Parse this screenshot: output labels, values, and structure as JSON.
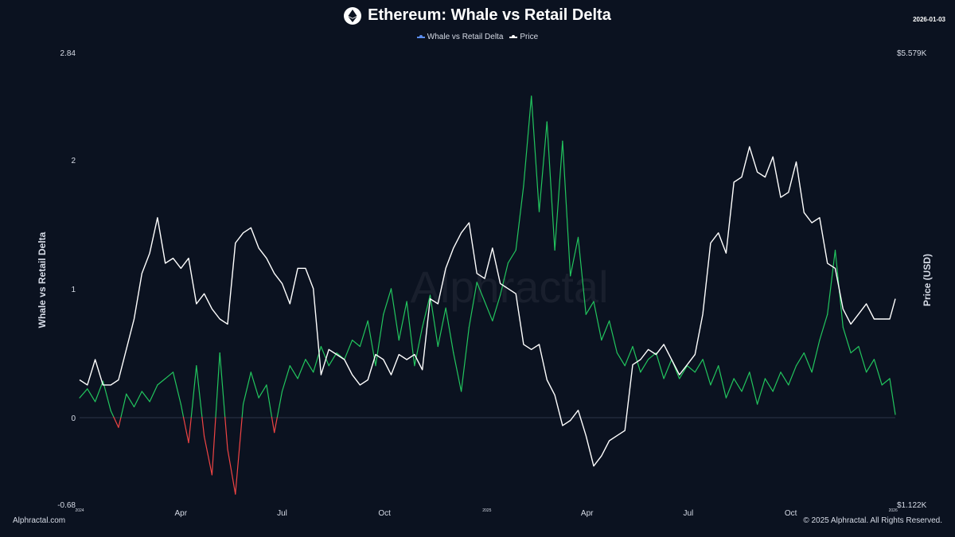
{
  "header": {
    "title": "Ethereum: Whale vs Retail Delta",
    "date": "2026-01-03",
    "logo_icon": "ethereum-icon"
  },
  "legend": [
    {
      "label": "Whale vs Retail Delta",
      "color": "#5b8def"
    },
    {
      "label": "Price",
      "color": "#ffffff"
    }
  ],
  "footer": {
    "left": "Alphractal.com",
    "right": "© 2025 Alphractal. All Rights Reserved."
  },
  "watermark": "Alphractal",
  "colors": {
    "positive": "#22c55e",
    "negative": "#ef4444",
    "price": "#ffffff",
    "background": "#0b1220"
  },
  "chart_data": {
    "type": "line",
    "x_range": [
      "2024-01-01",
      "2026-01-03"
    ],
    "left_axis": {
      "label": "Whale vs Retail Delta",
      "min": -0.68,
      "max": 2.84,
      "ticks": [
        "2.84",
        "2",
        "1",
        "0",
        "-0.68"
      ]
    },
    "right_axis": {
      "label": "Price (USD)",
      "min": 1122,
      "max": 5579,
      "ticks": [
        "$5.579K",
        "$1.122K"
      ]
    },
    "x_ticks": [
      {
        "date": "2024-01-01",
        "label": "2024",
        "small": true
      },
      {
        "date": "2024-04-01",
        "label": "Apr",
        "small": false
      },
      {
        "date": "2024-07-01",
        "label": "Jul",
        "small": false
      },
      {
        "date": "2024-10-01",
        "label": "Oct",
        "small": false
      },
      {
        "date": "2025-01-01",
        "label": "2025",
        "small": true
      },
      {
        "date": "2025-04-01",
        "label": "Apr",
        "small": false
      },
      {
        "date": "2025-07-01",
        "label": "Jul",
        "small": false
      },
      {
        "date": "2025-10-01",
        "label": "Oct",
        "small": false
      },
      {
        "date": "2026-01-01",
        "label": "2026",
        "small": true
      }
    ],
    "series": [
      {
        "name": "Whale vs Retail Delta",
        "axis": "left",
        "points": [
          [
            "2024-01-01",
            0.15
          ],
          [
            "2024-01-08",
            0.22
          ],
          [
            "2024-01-15",
            0.12
          ],
          [
            "2024-01-22",
            0.28
          ],
          [
            "2024-01-29",
            0.05
          ],
          [
            "2024-02-05",
            -0.08
          ],
          [
            "2024-02-12",
            0.18
          ],
          [
            "2024-02-19",
            0.08
          ],
          [
            "2024-02-26",
            0.2
          ],
          [
            "2024-03-04",
            0.12
          ],
          [
            "2024-03-11",
            0.25
          ],
          [
            "2024-03-18",
            0.3
          ],
          [
            "2024-03-25",
            0.35
          ],
          [
            "2024-04-01",
            0.1
          ],
          [
            "2024-04-08",
            -0.2
          ],
          [
            "2024-04-15",
            0.4
          ],
          [
            "2024-04-22",
            -0.15
          ],
          [
            "2024-04-29",
            -0.45
          ],
          [
            "2024-05-06",
            0.5
          ],
          [
            "2024-05-13",
            -0.25
          ],
          [
            "2024-05-20",
            -0.6
          ],
          [
            "2024-05-27",
            0.1
          ],
          [
            "2024-06-03",
            0.35
          ],
          [
            "2024-06-10",
            0.15
          ],
          [
            "2024-06-17",
            0.25
          ],
          [
            "2024-06-24",
            -0.12
          ],
          [
            "2024-07-01",
            0.2
          ],
          [
            "2024-07-08",
            0.4
          ],
          [
            "2024-07-15",
            0.3
          ],
          [
            "2024-07-22",
            0.45
          ],
          [
            "2024-07-29",
            0.35
          ],
          [
            "2024-08-05",
            0.55
          ],
          [
            "2024-08-12",
            0.4
          ],
          [
            "2024-08-19",
            0.5
          ],
          [
            "2024-08-26",
            0.45
          ],
          [
            "2024-09-02",
            0.6
          ],
          [
            "2024-09-09",
            0.55
          ],
          [
            "2024-09-16",
            0.75
          ],
          [
            "2024-09-23",
            0.4
          ],
          [
            "2024-09-30",
            0.8
          ],
          [
            "2024-10-07",
            1.0
          ],
          [
            "2024-10-14",
            0.6
          ],
          [
            "2024-10-21",
            0.9
          ],
          [
            "2024-10-28",
            0.4
          ],
          [
            "2024-11-04",
            0.7
          ],
          [
            "2024-11-11",
            0.95
          ],
          [
            "2024-11-18",
            0.55
          ],
          [
            "2024-11-25",
            0.85
          ],
          [
            "2024-12-02",
            0.5
          ],
          [
            "2024-12-09",
            0.2
          ],
          [
            "2024-12-16",
            0.7
          ],
          [
            "2024-12-23",
            1.05
          ],
          [
            "2024-12-30",
            0.9
          ],
          [
            "2025-01-06",
            0.75
          ],
          [
            "2025-01-13",
            0.95
          ],
          [
            "2025-01-20",
            1.2
          ],
          [
            "2025-01-27",
            1.3
          ],
          [
            "2025-02-03",
            1.8
          ],
          [
            "2025-02-10",
            2.5
          ],
          [
            "2025-02-17",
            1.6
          ],
          [
            "2025-02-24",
            2.3
          ],
          [
            "2025-03-03",
            1.3
          ],
          [
            "2025-03-10",
            2.15
          ],
          [
            "2025-03-17",
            1.1
          ],
          [
            "2025-03-24",
            1.4
          ],
          [
            "2025-03-31",
            0.8
          ],
          [
            "2025-04-07",
            0.9
          ],
          [
            "2025-04-14",
            0.6
          ],
          [
            "2025-04-21",
            0.75
          ],
          [
            "2025-04-28",
            0.5
          ],
          [
            "2025-05-05",
            0.4
          ],
          [
            "2025-05-12",
            0.55
          ],
          [
            "2025-05-19",
            0.35
          ],
          [
            "2025-05-26",
            0.45
          ],
          [
            "2025-06-02",
            0.5
          ],
          [
            "2025-06-09",
            0.3
          ],
          [
            "2025-06-16",
            0.45
          ],
          [
            "2025-06-23",
            0.3
          ],
          [
            "2025-06-30",
            0.4
          ],
          [
            "2025-07-07",
            0.35
          ],
          [
            "2025-07-14",
            0.45
          ],
          [
            "2025-07-21",
            0.25
          ],
          [
            "2025-07-28",
            0.4
          ],
          [
            "2025-08-04",
            0.15
          ],
          [
            "2025-08-11",
            0.3
          ],
          [
            "2025-08-18",
            0.2
          ],
          [
            "2025-08-25",
            0.35
          ],
          [
            "2025-09-01",
            0.1
          ],
          [
            "2025-09-08",
            0.3
          ],
          [
            "2025-09-15",
            0.2
          ],
          [
            "2025-09-22",
            0.35
          ],
          [
            "2025-09-29",
            0.25
          ],
          [
            "2025-10-06",
            0.4
          ],
          [
            "2025-10-13",
            0.5
          ],
          [
            "2025-10-20",
            0.35
          ],
          [
            "2025-10-27",
            0.6
          ],
          [
            "2025-11-03",
            0.8
          ],
          [
            "2025-11-10",
            1.3
          ],
          [
            "2025-11-17",
            0.7
          ],
          [
            "2025-11-24",
            0.5
          ],
          [
            "2025-12-01",
            0.55
          ],
          [
            "2025-12-08",
            0.35
          ],
          [
            "2025-12-15",
            0.45
          ],
          [
            "2025-12-22",
            0.25
          ],
          [
            "2025-12-29",
            0.3
          ],
          [
            "2026-01-03",
            0.02
          ]
        ]
      },
      {
        "name": "Price",
        "axis": "right",
        "points": [
          [
            "2024-01-01",
            2350
          ],
          [
            "2024-01-08",
            2300
          ],
          [
            "2024-01-15",
            2550
          ],
          [
            "2024-01-22",
            2300
          ],
          [
            "2024-01-29",
            2300
          ],
          [
            "2024-02-05",
            2350
          ],
          [
            "2024-02-12",
            2650
          ],
          [
            "2024-02-19",
            2950
          ],
          [
            "2024-02-26",
            3400
          ],
          [
            "2024-03-04",
            3600
          ],
          [
            "2024-03-11",
            3950
          ],
          [
            "2024-03-18",
            3500
          ],
          [
            "2024-03-25",
            3550
          ],
          [
            "2024-04-01",
            3450
          ],
          [
            "2024-04-08",
            3550
          ],
          [
            "2024-04-15",
            3100
          ],
          [
            "2024-04-22",
            3200
          ],
          [
            "2024-04-29",
            3050
          ],
          [
            "2024-05-06",
            2950
          ],
          [
            "2024-05-13",
            2900
          ],
          [
            "2024-05-20",
            3700
          ],
          [
            "2024-05-27",
            3800
          ],
          [
            "2024-06-03",
            3850
          ],
          [
            "2024-06-10",
            3650
          ],
          [
            "2024-06-17",
            3550
          ],
          [
            "2024-06-24",
            3400
          ],
          [
            "2024-07-01",
            3300
          ],
          [
            "2024-07-08",
            3100
          ],
          [
            "2024-07-15",
            3450
          ],
          [
            "2024-07-22",
            3450
          ],
          [
            "2024-07-29",
            3250
          ],
          [
            "2024-08-05",
            2400
          ],
          [
            "2024-08-12",
            2650
          ],
          [
            "2024-08-19",
            2600
          ],
          [
            "2024-08-26",
            2550
          ],
          [
            "2024-09-02",
            2400
          ],
          [
            "2024-09-09",
            2300
          ],
          [
            "2024-09-16",
            2350
          ],
          [
            "2024-09-23",
            2600
          ],
          [
            "2024-09-30",
            2550
          ],
          [
            "2024-10-07",
            2400
          ],
          [
            "2024-10-14",
            2600
          ],
          [
            "2024-10-21",
            2550
          ],
          [
            "2024-10-28",
            2600
          ],
          [
            "2024-11-04",
            2450
          ],
          [
            "2024-11-11",
            3150
          ],
          [
            "2024-11-18",
            3100
          ],
          [
            "2024-11-25",
            3450
          ],
          [
            "2024-12-02",
            3650
          ],
          [
            "2024-12-09",
            3800
          ],
          [
            "2024-12-16",
            3900
          ],
          [
            "2024-12-23",
            3400
          ],
          [
            "2024-12-30",
            3350
          ],
          [
            "2025-01-06",
            3650
          ],
          [
            "2025-01-13",
            3300
          ],
          [
            "2025-01-20",
            3250
          ],
          [
            "2025-01-27",
            3200
          ],
          [
            "2025-02-03",
            2700
          ],
          [
            "2025-02-10",
            2650
          ],
          [
            "2025-02-17",
            2700
          ],
          [
            "2025-02-24",
            2350
          ],
          [
            "2025-03-03",
            2200
          ],
          [
            "2025-03-10",
            1900
          ],
          [
            "2025-03-17",
            1950
          ],
          [
            "2025-03-24",
            2050
          ],
          [
            "2025-03-31",
            1800
          ],
          [
            "2025-04-07",
            1500
          ],
          [
            "2025-04-14",
            1600
          ],
          [
            "2025-04-21",
            1750
          ],
          [
            "2025-04-28",
            1800
          ],
          [
            "2025-05-05",
            1850
          ],
          [
            "2025-05-12",
            2500
          ],
          [
            "2025-05-19",
            2550
          ],
          [
            "2025-05-26",
            2650
          ],
          [
            "2025-06-02",
            2600
          ],
          [
            "2025-06-09",
            2700
          ],
          [
            "2025-06-16",
            2550
          ],
          [
            "2025-06-23",
            2400
          ],
          [
            "2025-06-30",
            2500
          ],
          [
            "2025-07-07",
            2600
          ],
          [
            "2025-07-14",
            3000
          ],
          [
            "2025-07-21",
            3700
          ],
          [
            "2025-07-28",
            3800
          ],
          [
            "2025-08-04",
            3600
          ],
          [
            "2025-08-11",
            4300
          ],
          [
            "2025-08-18",
            4350
          ],
          [
            "2025-08-25",
            4650
          ],
          [
            "2025-09-01",
            4400
          ],
          [
            "2025-09-08",
            4350
          ],
          [
            "2025-09-15",
            4550
          ],
          [
            "2025-09-22",
            4150
          ],
          [
            "2025-09-29",
            4200
          ],
          [
            "2025-10-06",
            4500
          ],
          [
            "2025-10-13",
            4000
          ],
          [
            "2025-10-20",
            3900
          ],
          [
            "2025-10-27",
            3950
          ],
          [
            "2025-11-03",
            3500
          ],
          [
            "2025-11-10",
            3450
          ],
          [
            "2025-11-17",
            3050
          ],
          [
            "2025-11-24",
            2900
          ],
          [
            "2025-12-01",
            3000
          ],
          [
            "2025-12-08",
            3100
          ],
          [
            "2025-12-15",
            2950
          ],
          [
            "2025-12-22",
            2950
          ],
          [
            "2025-12-29",
            2950
          ],
          [
            "2026-01-03",
            3150
          ]
        ]
      }
    ]
  }
}
